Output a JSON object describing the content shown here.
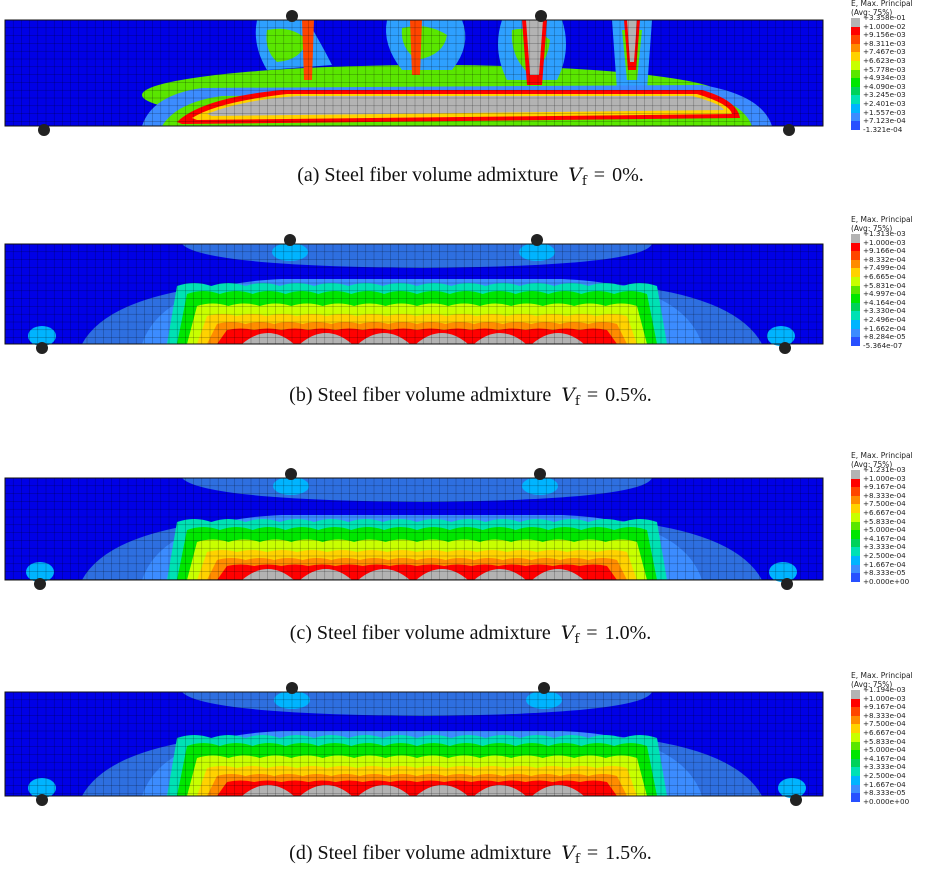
{
  "panels": [
    {
      "caption": "(a) Steel fiber volume admixture",
      "vf_symbol": "V",
      "vf_sub": "f",
      "vf_eq": "=",
      "vf_value": "0%.",
      "legend_title_1": "E, Max. Principal",
      "legend_title_2": "(Avg: 75%)",
      "legend_values": [
        "+3.358e-01",
        "+1.000e-02",
        "+9.156e-03",
        "+8.311e-03",
        "+7.467e-03",
        "+6.623e-03",
        "+5.778e-03",
        "+4.934e-03",
        "+4.090e-03",
        "+3.245e-03",
        "+2.401e-03",
        "+1.557e-03",
        "+7.123e-04",
        "-1.321e-04"
      ]
    },
    {
      "caption": "(b) Steel fiber volume admixture",
      "vf_symbol": "V",
      "vf_sub": "f",
      "vf_eq": "=",
      "vf_value": "0.5%.",
      "legend_title_1": "E, Max. Principal",
      "legend_title_2": "(Avg: 75%)",
      "legend_values": [
        "+1.313e-03",
        "+1.000e-03",
        "+9.166e-04",
        "+8.332e-04",
        "+7.499e-04",
        "+6.665e-04",
        "+5.831e-04",
        "+4.997e-04",
        "+4.164e-04",
        "+3.330e-04",
        "+2.496e-04",
        "+1.662e-04",
        "+8.284e-05",
        "-5.364e-07"
      ]
    },
    {
      "caption": "(c) Steel fiber volume admixture",
      "vf_symbol": "V",
      "vf_sub": "f",
      "vf_eq": "=",
      "vf_value": "1.0%.",
      "legend_title_1": "E, Max. Principal",
      "legend_title_2": "(Avg: 75%)",
      "legend_values": [
        "+1.231e-03",
        "+1.000e-03",
        "+9.167e-04",
        "+8.333e-04",
        "+7.500e-04",
        "+6.667e-04",
        "+5.833e-04",
        "+5.000e-04",
        "+4.167e-04",
        "+3.333e-04",
        "+2.500e-04",
        "+1.667e-04",
        "+8.333e-05",
        "+0.000e+00"
      ]
    },
    {
      "caption": "(d) Steel fiber volume admixture",
      "vf_symbol": "V",
      "vf_sub": "f",
      "vf_eq": "=",
      "vf_value": "1.5%.",
      "legend_title_1": "E, Max. Principal",
      "legend_title_2": "(Avg: 75%)",
      "legend_values": [
        "+1.194e-03",
        "+1.000e-03",
        "+9.167e-04",
        "+8.333e-04",
        "+7.500e-04",
        "+6.667e-04",
        "+5.833e-04",
        "+5.000e-04",
        "+4.167e-04",
        "+3.333e-04",
        "+2.500e-04",
        "+1.667e-04",
        "+8.333e-05",
        "+0.000e+00"
      ]
    }
  ],
  "contour_colors": [
    "#b3b3b3",
    "#ff0000",
    "#ff4500",
    "#ff8c00",
    "#ffd200",
    "#c8ff00",
    "#5ae600",
    "#00e600",
    "#00d25a",
    "#00e1b4",
    "#00b4ff",
    "#3c8cff",
    "#2850ff",
    "#0000e6"
  ]
}
